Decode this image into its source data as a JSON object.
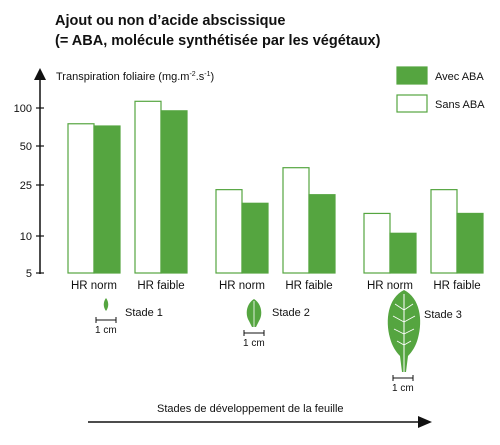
{
  "chart_data": {
    "type": "bar",
    "title_line1": "Ajout ou non d’acide abscissique",
    "title_line2": "(= ABA, molécule synthétisée par les végétaux)",
    "ylabel": "Transpiration foliaire (mg.m",
    "ylabel_sup1": "-2",
    "ylabel_mid": ".s",
    "ylabel_sup2": "-1",
    "ylabel_end": ")",
    "yscale": "log",
    "yticks": [
      "100",
      "50",
      "25",
      "10",
      "5"
    ],
    "ytick_values": [
      100,
      50,
      25,
      10,
      5
    ],
    "ylim": [
      5,
      130
    ],
    "categories": [
      "HR norm",
      "HR faible",
      "HR norm",
      "HR faible",
      "HR norm",
      "HR faible"
    ],
    "series": [
      {
        "name": "Sans ABA",
        "values": [
          75,
          113,
          23,
          34,
          15,
          23
        ]
      },
      {
        "name": "Avec ABA",
        "values": [
          72,
          95,
          18,
          21,
          10.5,
          15
        ]
      }
    ],
    "series_colors": {
      "Avec ABA": "#55a540",
      "Sans ABA": "#ffffff"
    },
    "legend": {
      "position": "top-right",
      "avec": "Avec ABA",
      "sans": "Sans ABA"
    },
    "stages": [
      {
        "label": "Stade 1",
        "scale": "1 cm"
      },
      {
        "label": "Stade 2",
        "scale": "1 cm"
      },
      {
        "label": "Stade 3",
        "scale": "1 cm"
      }
    ],
    "xlabel": "Stades de développement de la feuille",
    "grid": false
  }
}
